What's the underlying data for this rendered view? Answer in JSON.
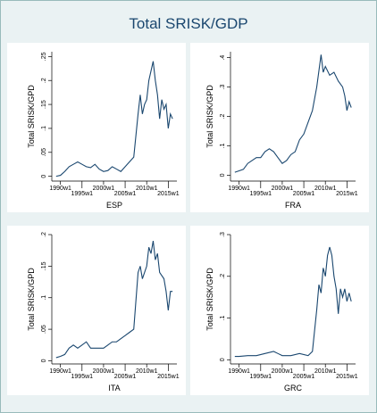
{
  "title": "Total SRISK/GDP",
  "chart_data": [
    {
      "type": "line",
      "xlabel": "ESP",
      "ylabel": "Total SRISK/GPD",
      "color": "#1a476f",
      "xlim": [
        "1988w1",
        "2017w1"
      ],
      "xticks": [
        "1990w1",
        "1995w1",
        "2000w1",
        "2005w1",
        "2010w1",
        "2015w1"
      ],
      "ylim": [
        -0.01,
        0.26
      ],
      "yticks": [
        0,
        {
          "value": 0.05,
          "label": ".05"
        },
        {
          "value": 0.1,
          "label": ".1"
        },
        {
          "value": 0.15,
          "label": ".15"
        },
        {
          "value": 0.2,
          "label": ".2"
        },
        {
          "value": 0.25,
          "label": ".25"
        }
      ],
      "x": [
        "1989w1",
        "1990w1",
        "1991w1",
        "1992w1",
        "1993w1",
        "1994w1",
        "1995w1",
        "1996w1",
        "1997w1",
        "1998w1",
        "1999w1",
        "2000w1",
        "2001w1",
        "2002w1",
        "2003w1",
        "2004w1",
        "2005w1",
        "2006w1",
        "2007w1",
        "2008w1",
        "2008w27",
        "2009w1",
        "2009w27",
        "2010w1",
        "2010w27",
        "2011w1",
        "2011w27",
        "2012w1",
        "2012w27",
        "2013w1",
        "2013w27",
        "2014w1",
        "2014w27",
        "2015w1",
        "2015w27",
        "2016w1"
      ],
      "values": [
        0,
        0.002,
        0.01,
        0.02,
        0.025,
        0.03,
        0.025,
        0.02,
        0.018,
        0.025,
        0.015,
        0.01,
        0.012,
        0.02,
        0.015,
        0.01,
        0.02,
        0.03,
        0.04,
        0.13,
        0.17,
        0.13,
        0.15,
        0.16,
        0.2,
        0.22,
        0.24,
        0.2,
        0.17,
        0.12,
        0.16,
        0.14,
        0.15,
        0.1,
        0.13,
        0.12
      ]
    },
    {
      "type": "line",
      "xlabel": "FRA",
      "ylabel": "Total SRISK/GPD",
      "color": "#1a476f",
      "xlim": [
        "1988w1",
        "2017w1"
      ],
      "xticks": [
        "1990w1",
        "1995w1",
        "2000w1",
        "2005w1",
        "2010w1",
        "2015w1"
      ],
      "ylim": [
        -0.02,
        0.42
      ],
      "yticks": [
        0,
        {
          "value": 0.1,
          "label": ".1"
        },
        {
          "value": 0.2,
          "label": ".2"
        },
        {
          "value": 0.3,
          "label": ".3"
        },
        {
          "value": 0.4,
          "label": ".4"
        }
      ],
      "x": [
        "1989w1",
        "1990w1",
        "1991w1",
        "1992w1",
        "1993w1",
        "1994w1",
        "1995w1",
        "1996w1",
        "1997w1",
        "1998w1",
        "1999w1",
        "2000w1",
        "2001w1",
        "2002w1",
        "2003w1",
        "2004w1",
        "2005w1",
        "2006w1",
        "2007w1",
        "2008w1",
        "2009w1",
        "2009w27",
        "2010w1",
        "2011w1",
        "2012w1",
        "2013w1",
        "2014w1",
        "2014w27",
        "2015w1",
        "2015w27",
        "2016w1"
      ],
      "values": [
        0.01,
        0.015,
        0.02,
        0.04,
        0.05,
        0.06,
        0.06,
        0.08,
        0.09,
        0.08,
        0.06,
        0.04,
        0.05,
        0.07,
        0.08,
        0.12,
        0.14,
        0.18,
        0.22,
        0.3,
        0.41,
        0.35,
        0.37,
        0.34,
        0.35,
        0.32,
        0.3,
        0.27,
        0.22,
        0.25,
        0.23
      ]
    },
    {
      "type": "line",
      "xlabel": "ITA",
      "ylabel": "Total SRISK/GPD",
      "color": "#1a476f",
      "xlim": [
        "1988w1",
        "2017w1"
      ],
      "xticks": [
        "1990w1",
        "1995w1",
        "2000w1",
        "2005w1",
        "2010w1",
        "2015w1"
      ],
      "ylim": [
        -0.005,
        0.2
      ],
      "yticks": [
        0,
        {
          "value": 0.05,
          "label": ".05"
        },
        {
          "value": 0.1,
          "label": ".1"
        },
        {
          "value": 0.15,
          "label": ".15"
        },
        {
          "value": 0.2,
          "label": ".2"
        }
      ],
      "x": [
        "1989w1",
        "1990w1",
        "1991w1",
        "1992w1",
        "1993w1",
        "1994w1",
        "1995w1",
        "1996w1",
        "1997w1",
        "1998w1",
        "1999w1",
        "2000w1",
        "2001w1",
        "2002w1",
        "2003w1",
        "2004w1",
        "2005w1",
        "2006w1",
        "2007w1",
        "2008w1",
        "2008w27",
        "2009w1",
        "2010w1",
        "2010w27",
        "2011w1",
        "2011w27",
        "2012w1",
        "2012w27",
        "2013w1",
        "2014w1",
        "2014w27",
        "2015w1",
        "2015w27",
        "2016w1"
      ],
      "values": [
        0.005,
        0.007,
        0.01,
        0.02,
        0.025,
        0.02,
        0.025,
        0.03,
        0.02,
        0.02,
        0.02,
        0.02,
        0.025,
        0.03,
        0.03,
        0.035,
        0.04,
        0.045,
        0.05,
        0.14,
        0.15,
        0.13,
        0.15,
        0.18,
        0.17,
        0.19,
        0.16,
        0.17,
        0.14,
        0.13,
        0.11,
        0.08,
        0.11,
        0.11
      ]
    },
    {
      "type": "line",
      "xlabel": "GRC",
      "ylabel": "Total SRISK/GPD",
      "color": "#1a476f",
      "xlim": [
        "1988w1",
        "2017w1"
      ],
      "xticks": [
        "1990w1",
        "1995w1",
        "2000w1",
        "2005w1",
        "2010w1",
        "2015w1"
      ],
      "ylim": [
        -0.01,
        0.3
      ],
      "yticks": [
        0,
        {
          "value": 0.1,
          "label": ".1"
        },
        {
          "value": 0.2,
          "label": ".2"
        },
        {
          "value": 0.3,
          "label": ".3"
        }
      ],
      "x": [
        "1989w1",
        "1990w1",
        "1992w1",
        "1994w1",
        "1996w1",
        "1998w1",
        "1999w1",
        "2000w1",
        "2002w1",
        "2004w1",
        "2006w1",
        "2007w1",
        "2008w1",
        "2008w27",
        "2009w1",
        "2009w27",
        "2010w1",
        "2010w27",
        "2011w1",
        "2011w27",
        "2012w1",
        "2012w27",
        "2013w1",
        "2013w27",
        "2014w1",
        "2014w27",
        "2015w1",
        "2015w27",
        "2016w1"
      ],
      "values": [
        0.008,
        0.008,
        0.01,
        0.01,
        0.015,
        0.02,
        0.015,
        0.01,
        0.01,
        0.015,
        0.01,
        0.02,
        0.12,
        0.18,
        0.16,
        0.22,
        0.2,
        0.25,
        0.27,
        0.25,
        0.2,
        0.17,
        0.11,
        0.17,
        0.15,
        0.17,
        0.14,
        0.16,
        0.14
      ]
    }
  ]
}
